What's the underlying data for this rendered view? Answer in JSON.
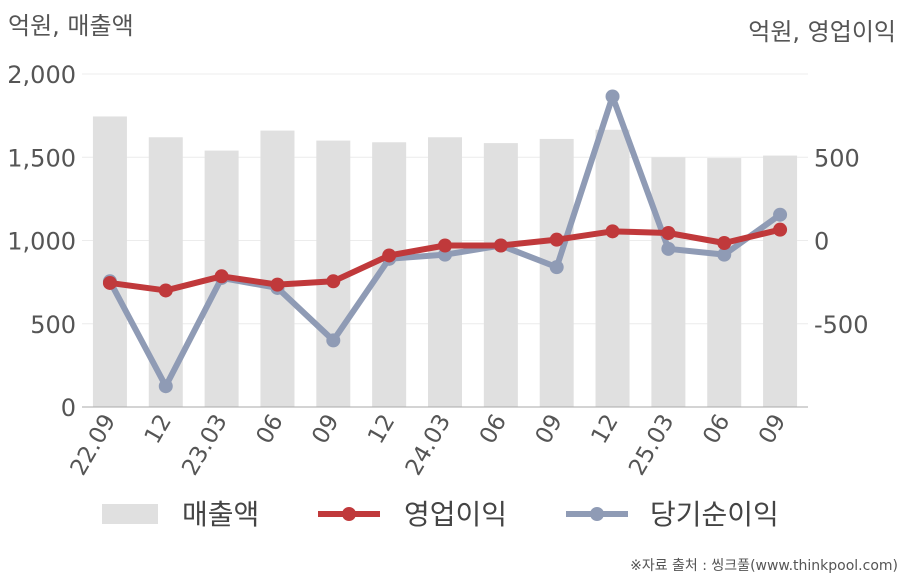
{
  "chart_data": {
    "type": "bar+line",
    "left_axis_label": "억원, 매출액",
    "right_axis_label": "억원, 영업이익",
    "categories": [
      "22.09",
      "12",
      "23.03",
      "06",
      "09",
      "12",
      "24.03",
      "06",
      "09",
      "12",
      "25.03",
      "06",
      "09"
    ],
    "left_ylim": [
      0,
      2000
    ],
    "left_ticks": [
      "0",
      "500",
      "1,000",
      "1,500",
      "2,000"
    ],
    "right_ylim": [
      -1000,
      1000
    ],
    "right_ticks": [
      "-500",
      "0",
      "500"
    ],
    "grid": true,
    "legend_position": "bottom",
    "series": [
      {
        "name": "매출액",
        "type": "bar",
        "axis": "left",
        "color": "#e0e0e0",
        "values": [
          1745,
          1620,
          1540,
          1660,
          1600,
          1590,
          1620,
          1585,
          1610,
          1665,
          1500,
          1495,
          1510
        ]
      },
      {
        "name": "영업이익",
        "type": "line",
        "axis": "right",
        "color": "#c0393b",
        "values": [
          -255,
          -300,
          -215,
          -265,
          -245,
          -90,
          -30,
          -30,
          5,
          55,
          45,
          -15,
          65
        ]
      },
      {
        "name": "당기순이익",
        "type": "line",
        "axis": "right",
        "color": "#8f9bb5",
        "values": [
          -245,
          -875,
          -225,
          -285,
          -600,
          -110,
          -85,
          -30,
          -160,
          865,
          -50,
          -85,
          155
        ]
      }
    ]
  },
  "source": "※자료 출처 : 씽크풀(www.thinkpool.com)"
}
